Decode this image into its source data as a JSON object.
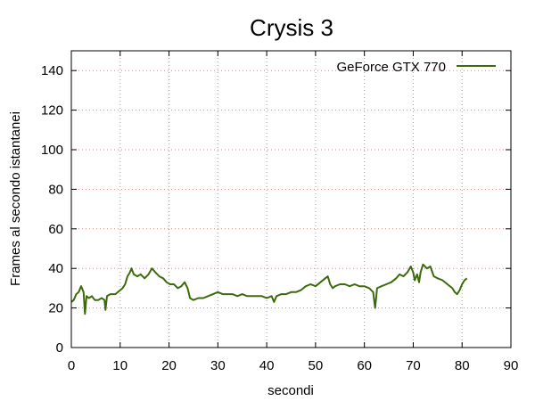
{
  "chart_data": {
    "type": "line",
    "title": "Crysis 3",
    "xlabel": "secondi",
    "ylabel": "Frames al secondo istantanei",
    "xlim": [
      0,
      90
    ],
    "ylim": [
      0,
      150
    ],
    "x_ticks": [
      0,
      10,
      20,
      30,
      40,
      50,
      60,
      70,
      80,
      90
    ],
    "y_ticks": [
      0,
      20,
      40,
      60,
      80,
      100,
      120,
      140
    ],
    "grid": true,
    "legend_position": "top-right",
    "series": [
      {
        "name": "GeForce GTX 770",
        "color": "#3d6b0c",
        "points": [
          [
            0,
            23
          ],
          [
            0.5,
            24
          ],
          [
            1,
            27
          ],
          [
            1.5,
            28
          ],
          [
            2,
            31
          ],
          [
            2.5,
            28
          ],
          [
            2.8,
            17
          ],
          [
            3.1,
            26
          ],
          [
            3.6,
            25
          ],
          [
            4.2,
            26
          ],
          [
            4.8,
            24
          ],
          [
            5.5,
            24
          ],
          [
            6.2,
            25
          ],
          [
            6.8,
            24
          ],
          [
            7,
            19
          ],
          [
            7.3,
            26
          ],
          [
            8,
            27
          ],
          [
            9,
            27
          ],
          [
            10,
            29
          ],
          [
            10.5,
            30
          ],
          [
            11,
            32
          ],
          [
            11.5,
            36
          ],
          [
            12,
            38
          ],
          [
            12.3,
            40
          ],
          [
            12.8,
            37
          ],
          [
            13.5,
            36
          ],
          [
            14.2,
            37
          ],
          [
            15,
            35
          ],
          [
            15.8,
            37
          ],
          [
            16.5,
            40
          ],
          [
            17.2,
            38
          ],
          [
            18,
            36
          ],
          [
            18.8,
            35
          ],
          [
            19.5,
            33
          ],
          [
            20.2,
            32
          ],
          [
            21,
            32
          ],
          [
            21.8,
            30
          ],
          [
            22.5,
            31
          ],
          [
            23.2,
            33
          ],
          [
            23.8,
            30
          ],
          [
            24.3,
            25
          ],
          [
            25,
            24
          ],
          [
            26,
            25
          ],
          [
            27,
            25
          ],
          [
            28,
            26
          ],
          [
            29,
            27
          ],
          [
            30,
            28
          ],
          [
            31,
            27
          ],
          [
            32,
            27
          ],
          [
            33,
            27
          ],
          [
            34,
            26
          ],
          [
            35,
            27
          ],
          [
            36,
            26
          ],
          [
            37,
            26
          ],
          [
            38,
            26
          ],
          [
            39,
            26
          ],
          [
            40,
            25
          ],
          [
            41,
            26
          ],
          [
            41.5,
            23
          ],
          [
            42,
            26
          ],
          [
            43,
            27
          ],
          [
            44,
            27
          ],
          [
            45,
            28
          ],
          [
            46,
            28
          ],
          [
            47,
            29
          ],
          [
            48,
            31
          ],
          [
            49,
            32
          ],
          [
            50,
            31
          ],
          [
            51,
            33
          ],
          [
            52,
            35
          ],
          [
            52.5,
            36
          ],
          [
            53,
            32
          ],
          [
            53.5,
            30
          ],
          [
            54,
            31
          ],
          [
            55,
            32
          ],
          [
            56,
            32
          ],
          [
            57,
            31
          ],
          [
            58,
            32
          ],
          [
            59,
            31
          ],
          [
            60,
            31
          ],
          [
            61,
            30
          ],
          [
            61.8,
            28
          ],
          [
            62.2,
            20
          ],
          [
            62.6,
            30
          ],
          [
            63.5,
            31
          ],
          [
            64.5,
            32
          ],
          [
            65.5,
            33
          ],
          [
            66.5,
            35
          ],
          [
            67.2,
            37
          ],
          [
            68,
            36
          ],
          [
            68.8,
            38
          ],
          [
            69.5,
            41
          ],
          [
            70,
            38
          ],
          [
            70.3,
            34
          ],
          [
            70.8,
            37
          ],
          [
            71.2,
            33
          ],
          [
            71.5,
            38
          ],
          [
            72,
            42
          ],
          [
            72.8,
            40
          ],
          [
            73.5,
            41
          ],
          [
            74.2,
            36
          ],
          [
            75,
            35
          ],
          [
            76,
            34
          ],
          [
            77,
            32
          ],
          [
            78,
            30
          ],
          [
            78.5,
            28
          ],
          [
            79,
            27
          ],
          [
            79.5,
            29
          ],
          [
            80,
            32
          ],
          [
            80.5,
            34
          ],
          [
            81,
            35
          ]
        ]
      }
    ]
  }
}
